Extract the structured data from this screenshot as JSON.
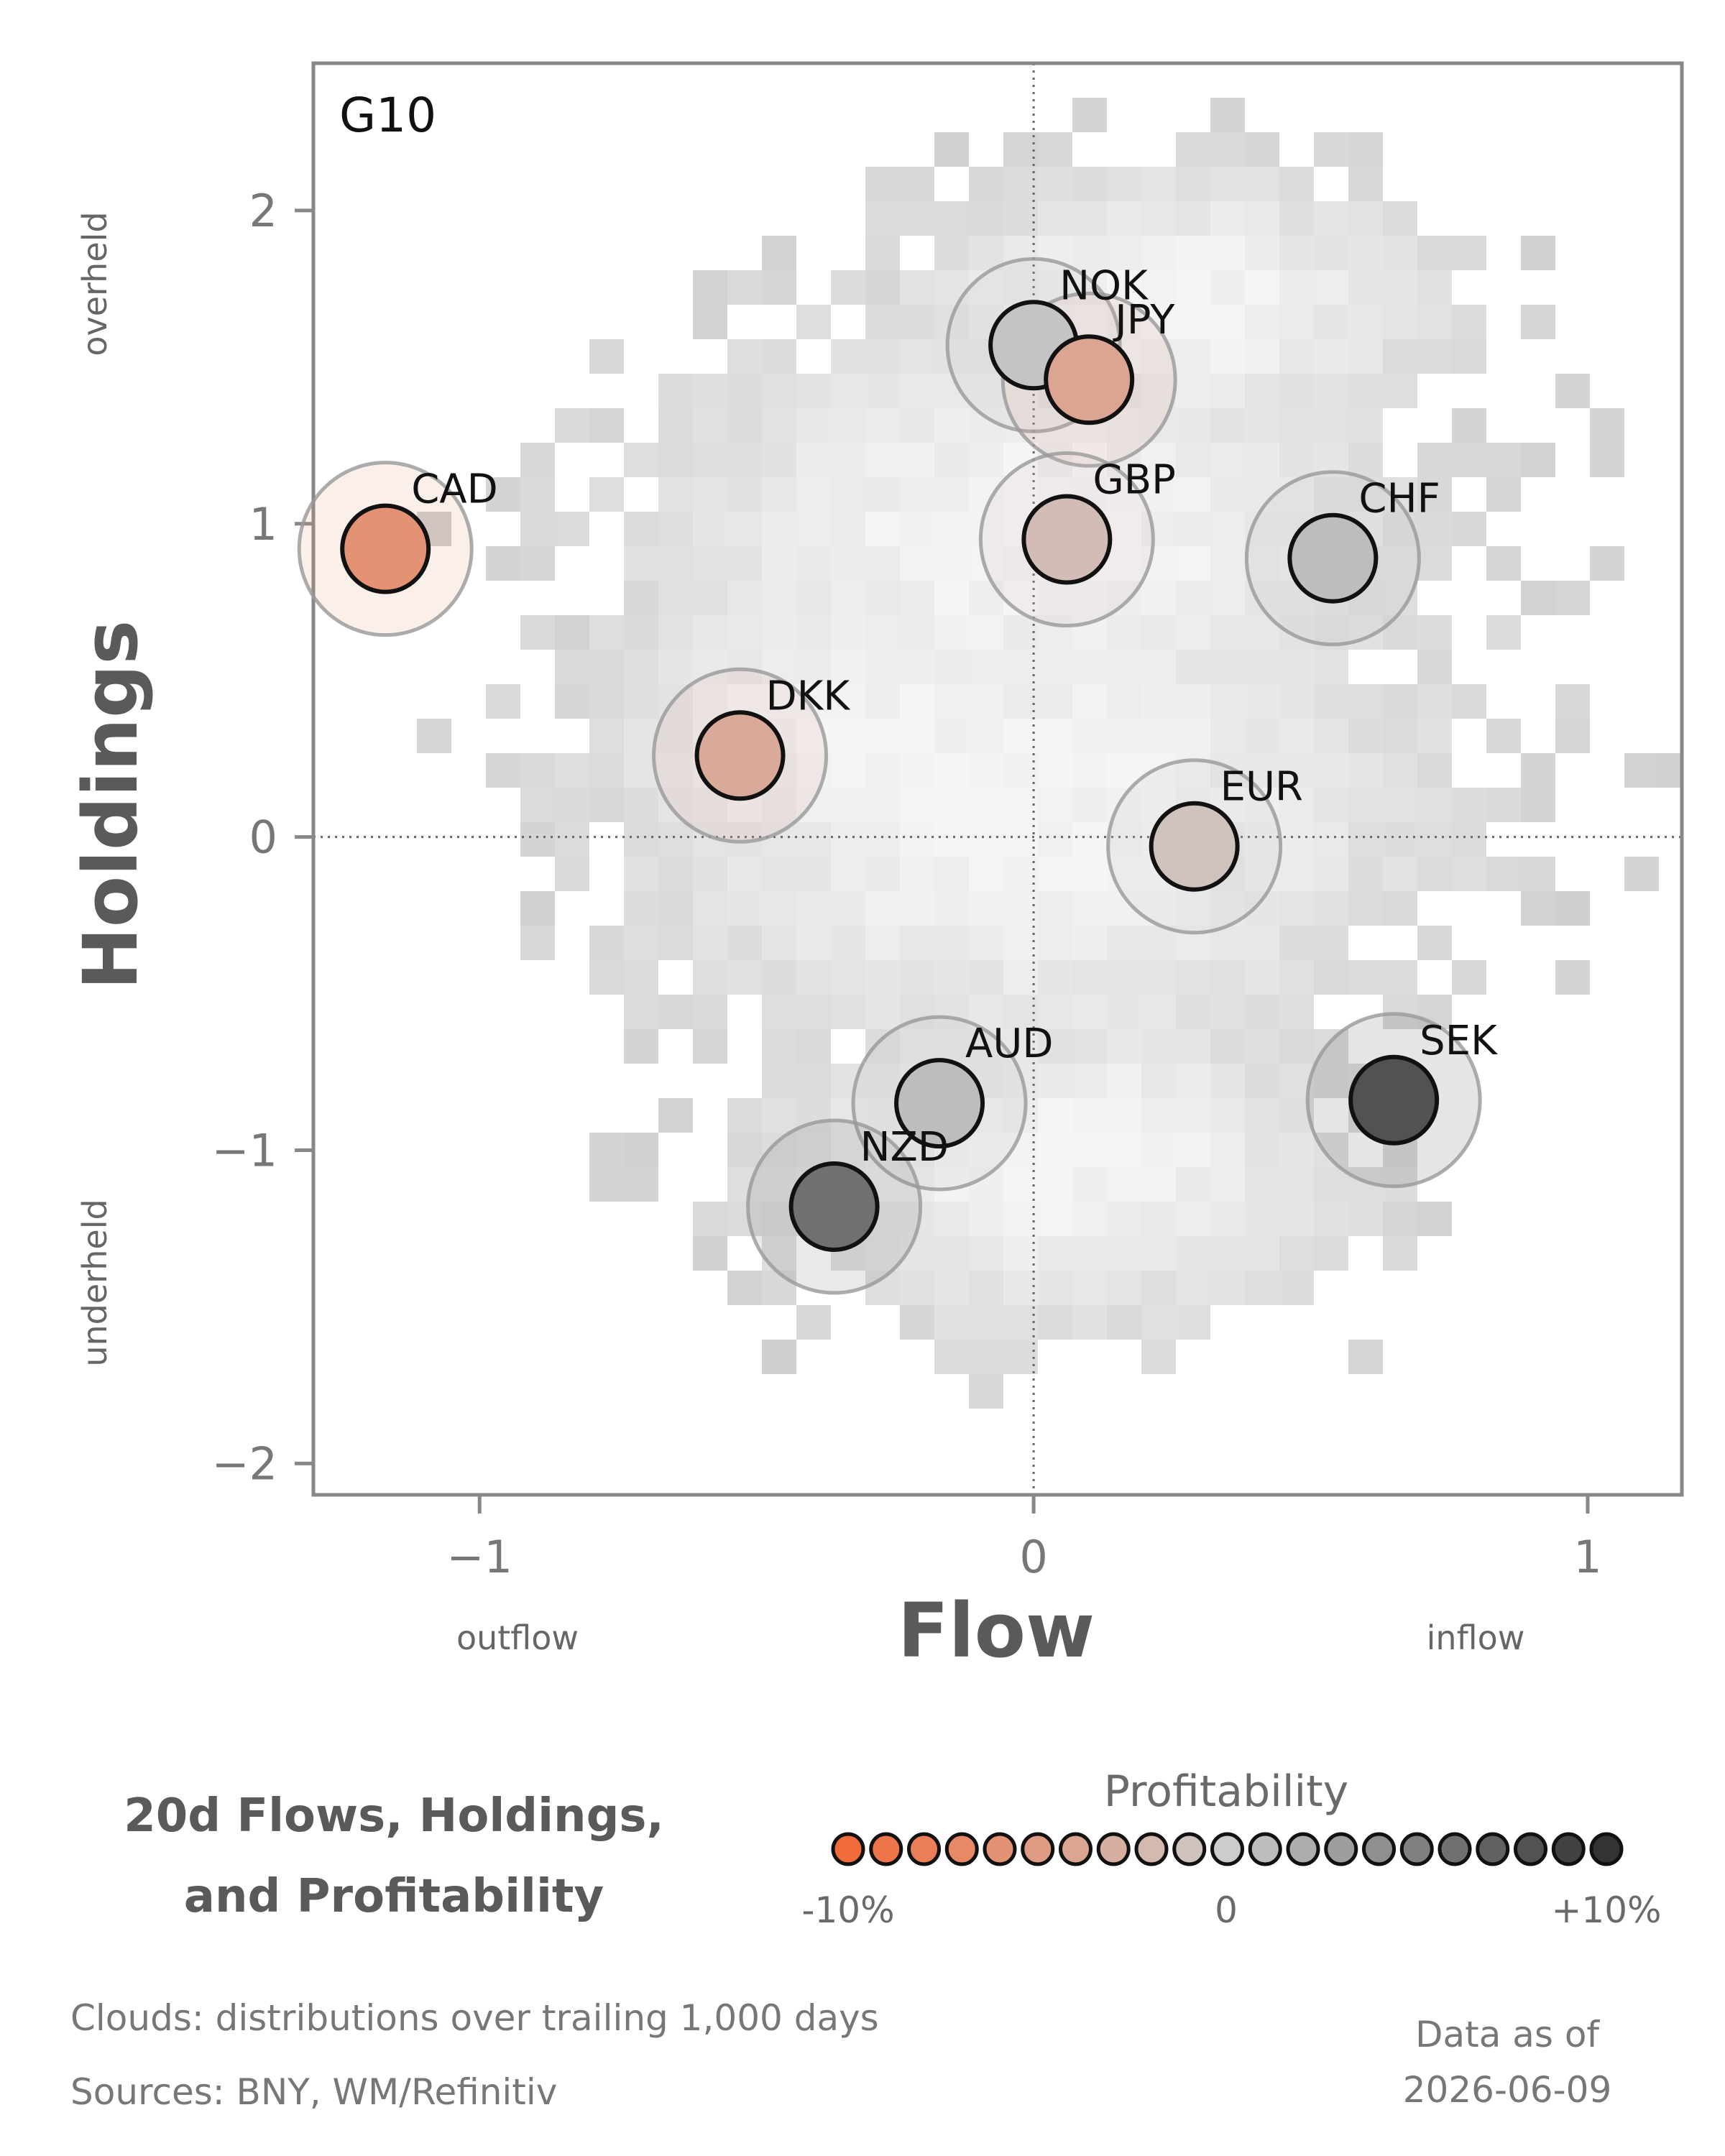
{
  "chart_data": {
    "type": "scatter",
    "panel_label": "G10",
    "xlabel": "Flow",
    "ylabel": "Holdings",
    "xlim": [
      -1.3,
      1.17
    ],
    "ylim": [
      -2.1,
      2.47
    ],
    "xticks": [
      -1,
      0,
      1
    ],
    "yticks": [
      -2,
      -1,
      0,
      1,
      2
    ],
    "x_side_labels": {
      "low": "outflow",
      "high": "inflow"
    },
    "y_side_labels": {
      "high": "overheld",
      "low": "underheld"
    },
    "reference_lines": {
      "x": 0,
      "y": 0,
      "style": "dotted"
    },
    "points": [
      {
        "label": "NOK",
        "x": 0.0,
        "y": 1.57,
        "profitability": 0.5
      },
      {
        "label": "JPY",
        "x": 0.1,
        "y": 1.46,
        "profitability": -4.0
      },
      {
        "label": "CAD",
        "x": -1.17,
        "y": 0.92,
        "profitability": -6.0
      },
      {
        "label": "GBP",
        "x": 0.06,
        "y": 0.95,
        "profitability": -1.5
      },
      {
        "label": "CHF",
        "x": 0.54,
        "y": 0.89,
        "profitability": 1.0
      },
      {
        "label": "DKK",
        "x": -0.53,
        "y": 0.26,
        "profitability": -3.5
      },
      {
        "label": "EUR",
        "x": 0.29,
        "y": -0.03,
        "profitability": -1.0
      },
      {
        "label": "AUD",
        "x": -0.17,
        "y": -0.85,
        "profitability": 1.0
      },
      {
        "label": "SEK",
        "x": 0.65,
        "y": -0.84,
        "profitability": 8.0
      },
      {
        "label": "NZD",
        "x": -0.36,
        "y": -1.18,
        "profitability": 6.0
      }
    ],
    "legend": {
      "title": "Profitability",
      "min_label": "-10%",
      "mid_label": "0",
      "max_label": "+10%",
      "low_color": "#f26b3a",
      "mid_color": "#cccccc",
      "high_color": "#333333"
    },
    "cloud_color": "#cccccc",
    "grid": false
  },
  "heading": {
    "line1": "20d Flows, Holdings,",
    "line2": "and Profitability"
  },
  "footer": {
    "clouds_note": "Clouds:  distributions over trailing 1,000 days",
    "sources": "Sources:  BNY, WM/Refinitiv",
    "asof_label": "Data as of",
    "asof_date": "2026-06-09"
  }
}
